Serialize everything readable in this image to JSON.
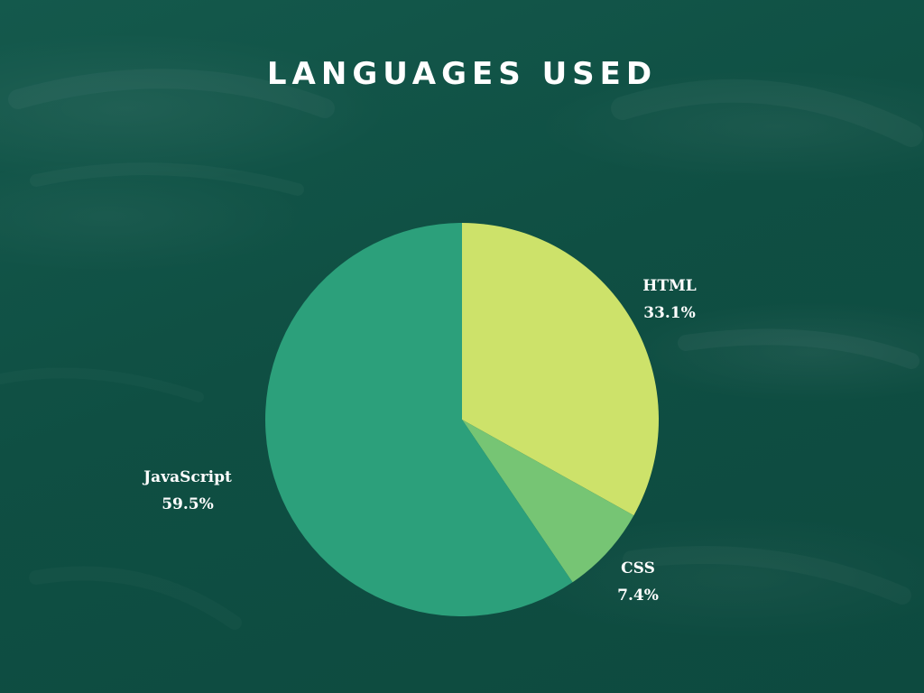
{
  "title": "LANGUAGES USED",
  "chart_data": {
    "type": "pie",
    "title": "LANGUAGES USED",
    "slices": [
      {
        "name": "HTML",
        "value": 33.1,
        "label": "33.1%",
        "color": "#cde26a"
      },
      {
        "name": "CSS",
        "value": 7.4,
        "label": "7.4%",
        "color": "#76c574"
      },
      {
        "name": "JavaScript",
        "value": 59.5,
        "label": "59.5%",
        "color": "#2ca07b"
      }
    ],
    "start": "top",
    "direction": "clockwise",
    "legend": "none"
  },
  "background": {
    "base_color": "#10513f",
    "texture": "chalkboard"
  }
}
